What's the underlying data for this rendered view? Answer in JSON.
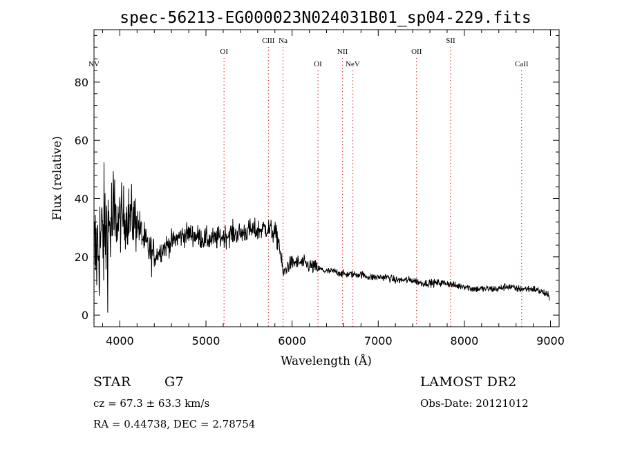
{
  "chart_data": {
    "type": "line",
    "title": "spec-56213-EG000023N024031B01_sp04-229.fits",
    "xlabel": "Wavelength (Å)",
    "ylabel": "Flux (relative)",
    "xlim": [
      3700,
      9100
    ],
    "ylim": [
      -4,
      98
    ],
    "x_ticks": [
      4000,
      5000,
      6000,
      7000,
      8000,
      9000
    ],
    "x_tick_labels": [
      "4000",
      "5000",
      "6000",
      "7000",
      "8000",
      "9000"
    ],
    "y_ticks": [
      0,
      20,
      40,
      60,
      80
    ],
    "y_tick_labels": [
      "0",
      "20",
      "40",
      "60",
      "80"
    ],
    "spectral_lines": [
      {
        "label": "NV",
        "wavelength": 3700,
        "row": 3
      },
      {
        "label": "OI",
        "wavelength": 5210,
        "row": 2
      },
      {
        "label": "CIII",
        "wavelength": 5725,
        "row": 1
      },
      {
        "label": "Na",
        "wavelength": 5895,
        "row": 1
      },
      {
        "label": "OI",
        "wavelength": 6300,
        "row": 3
      },
      {
        "label": "NII",
        "wavelength": 6585,
        "row": 2
      },
      {
        "label": "NeV",
        "wavelength": 6705,
        "row": 3
      },
      {
        "label": "OII",
        "wavelength": 7445,
        "row": 2
      },
      {
        "label": "SII",
        "wavelength": 7840,
        "row": 1
      },
      {
        "label": "CaII",
        "wavelength": 8665,
        "row": 3
      }
    ],
    "series": [
      {
        "name": "flux",
        "x": [
          3700,
          3800,
          3900,
          4000,
          4100,
          4200,
          4300,
          4400,
          4500,
          4600,
          4700,
          4800,
          4900,
          5000,
          5100,
          5200,
          5300,
          5400,
          5500,
          5600,
          5700,
          5750,
          5800,
          5850,
          5880,
          5900,
          5950,
          6000,
          6100,
          6200,
          6300,
          6400,
          6500,
          6600,
          6700,
          6800,
          6900,
          7000,
          7100,
          7200,
          7300,
          7400,
          7500,
          7600,
          7700,
          7800,
          7900,
          8000,
          8100,
          8200,
          8300,
          8400,
          8500,
          8600,
          8700,
          8800,
          8900,
          9000
        ],
        "values": [
          20,
          27,
          31,
          33,
          34,
          32,
          24,
          20,
          23,
          25,
          27,
          28,
          27,
          26,
          26,
          27,
          28,
          28,
          29,
          29,
          30,
          29,
          28,
          25,
          17,
          14,
          17,
          18,
          18,
          17,
          16,
          15,
          15,
          14,
          14,
          14,
          13,
          13,
          13,
          12,
          12,
          12,
          11,
          11,
          11,
          11,
          10,
          10,
          9,
          9,
          9,
          9,
          10,
          9,
          9,
          9,
          8,
          6
        ]
      }
    ]
  },
  "info": {
    "object_class": "STAR",
    "subclass": "G7",
    "redshift_text": "cz =  67.3 ± 63.3 km/s",
    "coords_text": "RA =    0.44738, DEC =    2.78754",
    "survey": "LAMOST DR2",
    "obs_date": "Obs-Date: 20121012"
  }
}
